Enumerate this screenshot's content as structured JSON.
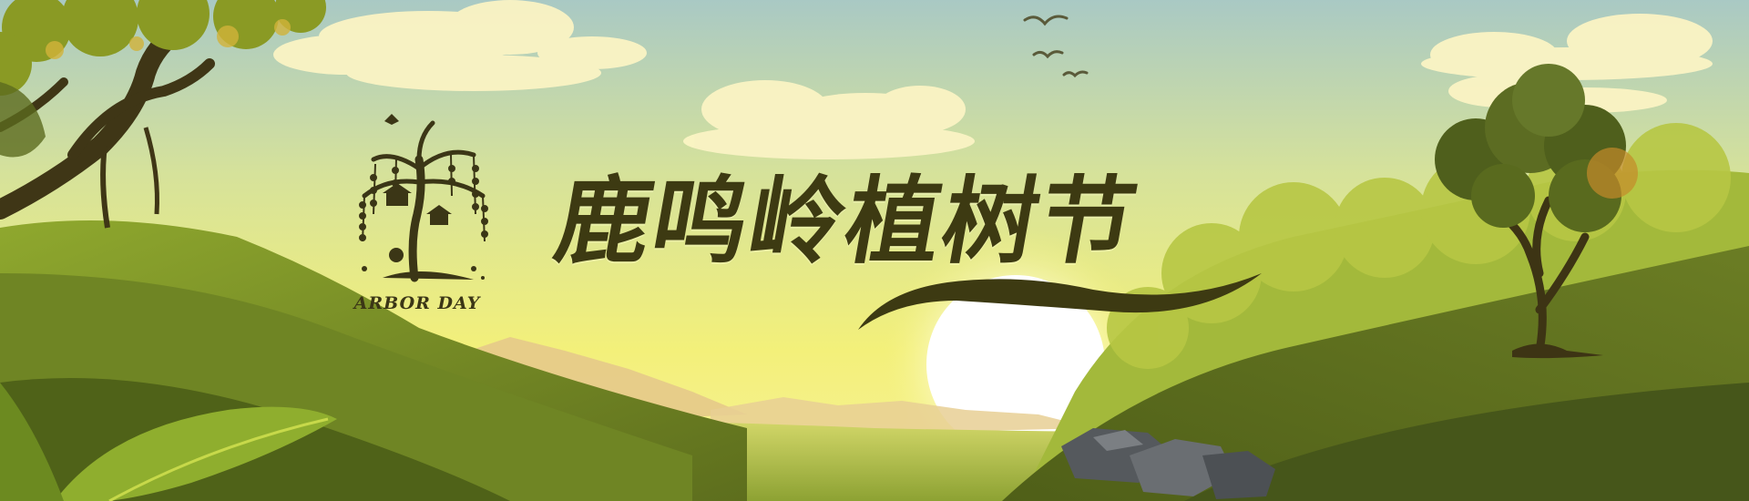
{
  "banner": {
    "headline": "鹿鸣岭植树节",
    "emblem_label": "ARBOR DAY"
  },
  "colors": {
    "sky_top": "#a9c9c4",
    "sky_glow": "#f3f07a",
    "sun": "#ffffff",
    "hill_light": "#a9bd3c",
    "hill_dark": "#5f6f1e",
    "headline_text": "#3d3a12",
    "tree_foliage": "#5a6a22",
    "rock": "#5e6266"
  },
  "icons": {
    "emblem": "willow-tree-emblem-icon",
    "birds": "flying-birds-icon",
    "sun": "setting-sun-icon",
    "rocks": "rock-pile-icon"
  }
}
